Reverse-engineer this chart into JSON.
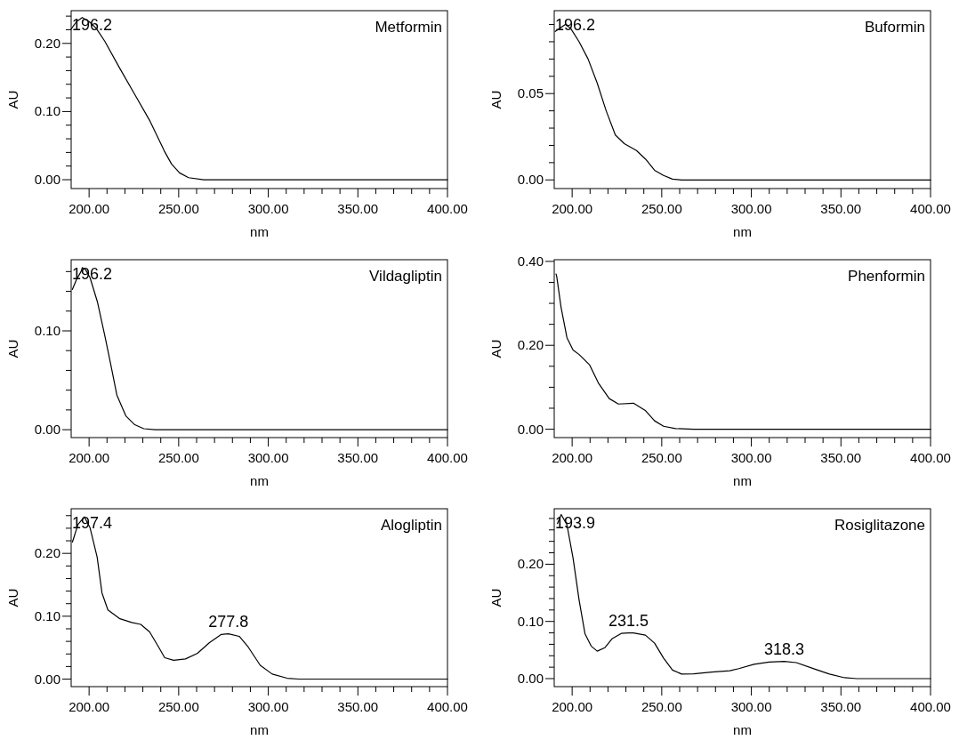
{
  "chart_data": [
    {
      "type": "line",
      "title": "Metformin",
      "xlabel": "nm",
      "ylabel": "AU",
      "color": "#000000",
      "xlim": [
        190,
        400
      ],
      "ylim": [
        -0.013,
        0.248
      ],
      "xticks": [
        {
          "value": 200,
          "label": "200.00"
        },
        {
          "value": 210,
          "label": null
        },
        {
          "value": 220,
          "label": null
        },
        {
          "value": 230,
          "label": null
        },
        {
          "value": 240,
          "label": null
        },
        {
          "value": 250,
          "label": "250.00"
        },
        {
          "value": 260,
          "label": null
        },
        {
          "value": 270,
          "label": null
        },
        {
          "value": 280,
          "label": null
        },
        {
          "value": 290,
          "label": null
        },
        {
          "value": 300,
          "label": "300.00"
        },
        {
          "value": 310,
          "label": null
        },
        {
          "value": 320,
          "label": null
        },
        {
          "value": 330,
          "label": null
        },
        {
          "value": 340,
          "label": null
        },
        {
          "value": 350,
          "label": "350.00"
        },
        {
          "value": 360,
          "label": null
        },
        {
          "value": 370,
          "label": null
        },
        {
          "value": 380,
          "label": null
        },
        {
          "value": 390,
          "label": null
        },
        {
          "value": 400,
          "label": "400.00"
        }
      ],
      "yticks": [
        {
          "value": 0,
          "label": "0.00"
        },
        {
          "value": 0.02,
          "label": null
        },
        {
          "value": 0.04,
          "label": null
        },
        {
          "value": 0.06,
          "label": null
        },
        {
          "value": 0.08,
          "label": null
        },
        {
          "value": 0.1,
          "label": "0.10"
        },
        {
          "value": 0.12,
          "label": null
        },
        {
          "value": 0.14,
          "label": null
        },
        {
          "value": 0.16,
          "label": null
        },
        {
          "value": 0.18,
          "label": null
        },
        {
          "value": 0.2,
          "label": "0.20"
        },
        {
          "value": 0.22,
          "label": null
        },
        {
          "value": 0.24,
          "label": null
        }
      ],
      "x": [
        190,
        193,
        196.2,
        200,
        204,
        208.8,
        217,
        225.5,
        234,
        242,
        246,
        250.5,
        255.5,
        264,
        300,
        350,
        400
      ],
      "values": [
        0.221,
        0.232,
        0.238,
        0.232,
        0.222,
        0.203,
        0.164,
        0.125,
        0.086,
        0.042,
        0.023,
        0.01,
        0.003,
        0,
        0,
        0,
        0
      ],
      "annotations": [
        {
          "text": "196.2",
          "x": 196.2,
          "y": 0.238
        }
      ]
    },
    {
      "type": "line",
      "title": "Buformin",
      "xlabel": "nm",
      "ylabel": "AU",
      "color": "#000000",
      "xlim": [
        190,
        400
      ],
      "ylim": [
        -0.005,
        0.098
      ],
      "xticks": [
        {
          "value": 200,
          "label": "200.00"
        },
        {
          "value": 210,
          "label": null
        },
        {
          "value": 220,
          "label": null
        },
        {
          "value": 230,
          "label": null
        },
        {
          "value": 240,
          "label": null
        },
        {
          "value": 250,
          "label": "250.00"
        },
        {
          "value": 260,
          "label": null
        },
        {
          "value": 270,
          "label": null
        },
        {
          "value": 280,
          "label": null
        },
        {
          "value": 290,
          "label": null
        },
        {
          "value": 300,
          "label": "300.00"
        },
        {
          "value": 310,
          "label": null
        },
        {
          "value": 320,
          "label": null
        },
        {
          "value": 330,
          "label": null
        },
        {
          "value": 340,
          "label": null
        },
        {
          "value": 350,
          "label": "350.00"
        },
        {
          "value": 360,
          "label": null
        },
        {
          "value": 370,
          "label": null
        },
        {
          "value": 380,
          "label": null
        },
        {
          "value": 390,
          "label": null
        },
        {
          "value": 400,
          "label": "400.00"
        }
      ],
      "yticks": [
        {
          "value": 0,
          "label": "0.00"
        },
        {
          "value": 0.01,
          "label": null
        },
        {
          "value": 0.02,
          "label": null
        },
        {
          "value": 0.03,
          "label": null
        },
        {
          "value": 0.04,
          "label": null
        },
        {
          "value": 0.05,
          "label": "0.05"
        },
        {
          "value": 0.06,
          "label": null
        },
        {
          "value": 0.07,
          "label": null
        },
        {
          "value": 0.08,
          "label": null
        },
        {
          "value": 0.09,
          "label": null
        }
      ],
      "x": [
        190.6,
        192.1,
        196.2,
        199,
        203.9,
        208.9,
        214,
        219,
        224.1,
        229.1,
        235.9,
        241,
        246,
        251,
        256,
        261,
        300,
        350,
        400
      ],
      "values": [
        0.086,
        0.087,
        0.09,
        0.088,
        0.08,
        0.07,
        0.056,
        0.04,
        0.026,
        0.021,
        0.017,
        0.012,
        0.0056,
        0.0026,
        0.0005,
        0,
        0,
        0,
        0
      ],
      "annotations": [
        {
          "text": "196.2",
          "x": 196.2,
          "y": 0.09
        }
      ]
    },
    {
      "type": "line",
      "title": "Vildagliptin",
      "xlabel": "nm",
      "ylabel": "AU",
      "color": "#000000",
      "xlim": [
        190,
        400
      ],
      "ylim": [
        -0.008,
        0.172
      ],
      "xticks": [
        {
          "value": 200,
          "label": "200.00"
        },
        {
          "value": 210,
          "label": null
        },
        {
          "value": 220,
          "label": null
        },
        {
          "value": 230,
          "label": null
        },
        {
          "value": 240,
          "label": null
        },
        {
          "value": 250,
          "label": "250.00"
        },
        {
          "value": 260,
          "label": null
        },
        {
          "value": 270,
          "label": null
        },
        {
          "value": 280,
          "label": null
        },
        {
          "value": 290,
          "label": null
        },
        {
          "value": 300,
          "label": "300.00"
        },
        {
          "value": 310,
          "label": null
        },
        {
          "value": 320,
          "label": null
        },
        {
          "value": 330,
          "label": null
        },
        {
          "value": 340,
          "label": null
        },
        {
          "value": 350,
          "label": "350.00"
        },
        {
          "value": 360,
          "label": null
        },
        {
          "value": 370,
          "label": null
        },
        {
          "value": 380,
          "label": null
        },
        {
          "value": 390,
          "label": null
        },
        {
          "value": 400,
          "label": "400.00"
        }
      ],
      "yticks": [
        {
          "value": 0,
          "label": "0.00"
        },
        {
          "value": 0.02,
          "label": null
        },
        {
          "value": 0.04,
          "label": null
        },
        {
          "value": 0.06,
          "label": null
        },
        {
          "value": 0.08,
          "label": null
        },
        {
          "value": 0.1,
          "label": "0.10"
        },
        {
          "value": 0.12,
          "label": null
        },
        {
          "value": 0.14,
          "label": null
        },
        {
          "value": 0.16,
          "label": null
        }
      ],
      "x": [
        190.7,
        193,
        195.5,
        196.2,
        198,
        200.5,
        204.7,
        208.8,
        212.2,
        215.5,
        220.5,
        225.5,
        230.5,
        237,
        300,
        350,
        400
      ],
      "values": [
        0.142,
        0.152,
        0.16,
        0.164,
        0.162,
        0.154,
        0.129,
        0.095,
        0.065,
        0.035,
        0.014,
        0.005,
        0.001,
        0,
        0,
        0,
        0
      ],
      "annotations": [
        {
          "text": "196.2",
          "x": 196.2,
          "y": 0.164
        }
      ]
    },
    {
      "type": "line",
      "title": "Phenformin",
      "xlabel": "nm",
      "ylabel": "AU",
      "color": "#000000",
      "xlim": [
        190,
        400
      ],
      "ylim": [
        -0.02,
        0.404
      ],
      "xticks": [
        {
          "value": 200,
          "label": "200.00"
        },
        {
          "value": 210,
          "label": null
        },
        {
          "value": 220,
          "label": null
        },
        {
          "value": 230,
          "label": null
        },
        {
          "value": 240,
          "label": null
        },
        {
          "value": 250,
          "label": "250.00"
        },
        {
          "value": 260,
          "label": null
        },
        {
          "value": 270,
          "label": null
        },
        {
          "value": 280,
          "label": null
        },
        {
          "value": 290,
          "label": null
        },
        {
          "value": 300,
          "label": "300.00"
        },
        {
          "value": 310,
          "label": null
        },
        {
          "value": 320,
          "label": null
        },
        {
          "value": 330,
          "label": null
        },
        {
          "value": 340,
          "label": null
        },
        {
          "value": 350,
          "label": "350.00"
        },
        {
          "value": 360,
          "label": null
        },
        {
          "value": 370,
          "label": null
        },
        {
          "value": 380,
          "label": null
        },
        {
          "value": 390,
          "label": null
        },
        {
          "value": 400,
          "label": "400.00"
        }
      ],
      "yticks": [
        {
          "value": 0,
          "label": "0.00"
        },
        {
          "value": 0.05,
          "label": null
        },
        {
          "value": 0.1,
          "label": null
        },
        {
          "value": 0.15,
          "label": null
        },
        {
          "value": 0.2,
          "label": "0.20"
        },
        {
          "value": 0.25,
          "label": null
        },
        {
          "value": 0.3,
          "label": null
        },
        {
          "value": 0.35,
          "label": null
        },
        {
          "value": 0.4,
          "label": "0.40"
        }
      ],
      "x": [
        191,
        191.4,
        193.8,
        197.1,
        200.5,
        203.9,
        209.8,
        214.8,
        220.7,
        225.8,
        234.2,
        241,
        246,
        251,
        257.7,
        267.8,
        300,
        350,
        400
      ],
      "values": [
        0.37,
        0.364,
        0.291,
        0.218,
        0.189,
        0.178,
        0.153,
        0.109,
        0.073,
        0.06,
        0.062,
        0.044,
        0.02,
        0.007,
        0.0015,
        0,
        0,
        0,
        0
      ]
    },
    {
      "type": "line",
      "title": "Alogliptin",
      "xlabel": "nm",
      "ylabel": "AU",
      "color": "#000000",
      "xlim": [
        190,
        400
      ],
      "ylim": [
        -0.012,
        0.271
      ],
      "xticks": [
        {
          "value": 200,
          "label": "200.00"
        },
        {
          "value": 210,
          "label": null
        },
        {
          "value": 220,
          "label": null
        },
        {
          "value": 230,
          "label": null
        },
        {
          "value": 240,
          "label": null
        },
        {
          "value": 250,
          "label": "250.00"
        },
        {
          "value": 260,
          "label": null
        },
        {
          "value": 270,
          "label": null
        },
        {
          "value": 280,
          "label": null
        },
        {
          "value": 290,
          "label": null
        },
        {
          "value": 300,
          "label": "300.00"
        },
        {
          "value": 310,
          "label": null
        },
        {
          "value": 320,
          "label": null
        },
        {
          "value": 330,
          "label": null
        },
        {
          "value": 340,
          "label": null
        },
        {
          "value": 350,
          "label": "350.00"
        },
        {
          "value": 360,
          "label": null
        },
        {
          "value": 370,
          "label": null
        },
        {
          "value": 380,
          "label": null
        },
        {
          "value": 390,
          "label": null
        },
        {
          "value": 400,
          "label": "400.00"
        }
      ],
      "yticks": [
        {
          "value": 0,
          "label": "0.00"
        },
        {
          "value": 0.02,
          "label": null
        },
        {
          "value": 0.04,
          "label": null
        },
        {
          "value": 0.06,
          "label": null
        },
        {
          "value": 0.08,
          "label": null
        },
        {
          "value": 0.1,
          "label": "0.10"
        },
        {
          "value": 0.12,
          "label": null
        },
        {
          "value": 0.14,
          "label": null
        },
        {
          "value": 0.16,
          "label": null
        },
        {
          "value": 0.18,
          "label": null
        },
        {
          "value": 0.2,
          "label": "0.20"
        },
        {
          "value": 0.22,
          "label": null
        },
        {
          "value": 0.24,
          "label": null
        },
        {
          "value": 0.26,
          "label": null
        }
      ],
      "x": [
        190.7,
        193.8,
        197.4,
        200.5,
        204.5,
        207.2,
        210.5,
        217.2,
        223.8,
        228.8,
        233.8,
        238.8,
        242.2,
        247.2,
        253.8,
        260.5,
        267.2,
        273.8,
        277.8,
        283.8,
        288.8,
        295.5,
        302.2,
        310.5,
        317.2,
        350,
        400
      ],
      "values": [
        0.218,
        0.246,
        0.258,
        0.241,
        0.194,
        0.137,
        0.11,
        0.096,
        0.09,
        0.087,
        0.075,
        0.051,
        0.034,
        0.03,
        0.032,
        0.041,
        0.058,
        0.071,
        0.072,
        0.068,
        0.051,
        0.022,
        0.008,
        0.0014,
        0,
        0,
        0
      ],
      "annotations": [
        {
          "text": "197.4",
          "x": 197.4,
          "y": 0.258
        },
        {
          "text": "277.8",
          "x": 277.8,
          "y": 0.072
        }
      ]
    },
    {
      "type": "line",
      "title": "Rosiglitazone",
      "xlabel": "nm",
      "ylabel": "AU",
      "color": "#000000",
      "xlim": [
        190,
        400
      ],
      "ylim": [
        -0.014,
        0.297
      ],
      "xticks": [
        {
          "value": 200,
          "label": "200.00"
        },
        {
          "value": 210,
          "label": null
        },
        {
          "value": 220,
          "label": null
        },
        {
          "value": 230,
          "label": null
        },
        {
          "value": 240,
          "label": null
        },
        {
          "value": 250,
          "label": "250.00"
        },
        {
          "value": 260,
          "label": null
        },
        {
          "value": 270,
          "label": null
        },
        {
          "value": 280,
          "label": null
        },
        {
          "value": 290,
          "label": null
        },
        {
          "value": 300,
          "label": "300.00"
        },
        {
          "value": 310,
          "label": null
        },
        {
          "value": 320,
          "label": null
        },
        {
          "value": 330,
          "label": null
        },
        {
          "value": 340,
          "label": null
        },
        {
          "value": 350,
          "label": "350.00"
        },
        {
          "value": 360,
          "label": null
        },
        {
          "value": 370,
          "label": null
        },
        {
          "value": 380,
          "label": null
        },
        {
          "value": 390,
          "label": null
        },
        {
          "value": 400,
          "label": "400.00"
        }
      ],
      "yticks": [
        {
          "value": 0,
          "label": "0.00"
        },
        {
          "value": 0.02,
          "label": null
        },
        {
          "value": 0.04,
          "label": null
        },
        {
          "value": 0.06,
          "label": null
        },
        {
          "value": 0.08,
          "label": null
        },
        {
          "value": 0.1,
          "label": "0.10"
        },
        {
          "value": 0.12,
          "label": null
        },
        {
          "value": 0.14,
          "label": null
        },
        {
          "value": 0.16,
          "label": null
        },
        {
          "value": 0.18,
          "label": null
        },
        {
          "value": 0.2,
          "label": "0.20"
        },
        {
          "value": 0.22,
          "label": null
        },
        {
          "value": 0.24,
          "label": null
        },
        {
          "value": 0.26,
          "label": null
        },
        {
          "value": 0.28,
          "label": null
        }
      ],
      "x": [
        191.8,
        193.9,
        197.1,
        200.5,
        203.9,
        207.2,
        210.6,
        214,
        218.2,
        222.4,
        227.4,
        231.5,
        234.2,
        240.9,
        246,
        251,
        256,
        261.1,
        267.8,
        277.9,
        288,
        293,
        301.5,
        309.9,
        318.3,
        325.1,
        335.2,
        343.6,
        352,
        358.8,
        400
      ],
      "values": [
        0.271,
        0.287,
        0.269,
        0.211,
        0.137,
        0.078,
        0.057,
        0.048,
        0.054,
        0.07,
        0.079,
        0.08,
        0.08,
        0.076,
        0.062,
        0.036,
        0.015,
        0.008,
        0.0085,
        0.0116,
        0.0138,
        0.0175,
        0.025,
        0.029,
        0.03,
        0.028,
        0.017,
        0.008,
        0.0016,
        0,
        0
      ],
      "annotations": [
        {
          "text": "193.9",
          "x": 193.9,
          "y": 0.287
        },
        {
          "text": "231.5",
          "x": 231.5,
          "y": 0.08
        },
        {
          "text": "318.3",
          "x": 318.3,
          "y": 0.03
        }
      ]
    }
  ]
}
